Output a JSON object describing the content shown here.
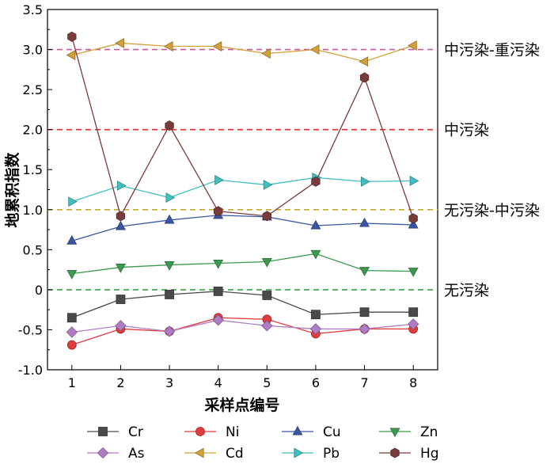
{
  "chart_data": {
    "type": "line",
    "title": "",
    "xlabel": "采样点编号",
    "ylabel": "地累积指数",
    "x": [
      1,
      2,
      3,
      4,
      5,
      6,
      7,
      8
    ],
    "xlim": [
      0.5,
      8.5
    ],
    "ylim": [
      -1.0,
      3.5
    ],
    "yticks": [
      "-1.0",
      "-0.5",
      "0",
      "0.5",
      "1.0",
      "1.5",
      "2.0",
      "2.5",
      "3.0",
      "3.5"
    ],
    "grid": false,
    "legend_position": "bottom",
    "reference_lines": [
      {
        "value": 3.0,
        "label": "中污染-重污染",
        "color": "#c05a9a"
      },
      {
        "value": 2.0,
        "label": "中污染",
        "color": "#e03030"
      },
      {
        "value": 1.0,
        "label": "无污染-中污染",
        "color": "#c8a838"
      },
      {
        "value": 0.0,
        "label": "无污染",
        "color": "#40a040"
      }
    ],
    "series": [
      {
        "name": "Cr",
        "marker": "square",
        "color": "#4a4a4a",
        "values": [
          -0.35,
          -0.12,
          -0.06,
          -0.02,
          -0.07,
          -0.31,
          -0.28,
          -0.28
        ]
      },
      {
        "name": "Ni",
        "marker": "circle",
        "color": "#e23b3b",
        "values": [
          -0.69,
          -0.49,
          -0.52,
          -0.35,
          -0.37,
          -0.55,
          -0.49,
          -0.49
        ]
      },
      {
        "name": "Cu",
        "marker": "triangle-up",
        "color": "#3a55a4",
        "values": [
          0.61,
          0.79,
          0.87,
          0.93,
          0.91,
          0.8,
          0.83,
          0.81
        ]
      },
      {
        "name": "Zn",
        "marker": "triangle-down",
        "color": "#3c9a50",
        "values": [
          0.2,
          0.28,
          0.31,
          0.33,
          0.35,
          0.45,
          0.24,
          0.23
        ]
      },
      {
        "name": "As",
        "marker": "diamond",
        "color": "#b07cc6",
        "values": [
          -0.53,
          -0.45,
          -0.52,
          -0.38,
          -0.45,
          -0.49,
          -0.49,
          -0.43
        ]
      },
      {
        "name": "Cd",
        "marker": "triangle-left",
        "color": "#d4a03a",
        "values": [
          2.93,
          3.08,
          3.04,
          3.04,
          2.95,
          3.0,
          2.85,
          3.05
        ]
      },
      {
        "name": "Pb",
        "marker": "triangle-right",
        "color": "#40c0c0",
        "values": [
          1.1,
          1.3,
          1.15,
          1.37,
          1.31,
          1.4,
          1.35,
          1.36
        ]
      },
      {
        "name": "Hg",
        "marker": "hexagon",
        "color": "#7a3b3b",
        "values": [
          3.16,
          0.92,
          2.05,
          0.98,
          0.92,
          1.35,
          2.65,
          0.89
        ]
      }
    ]
  }
}
